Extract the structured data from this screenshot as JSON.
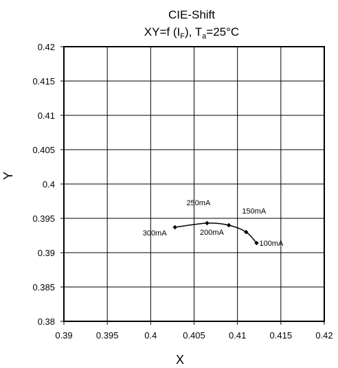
{
  "chart_data": {
    "type": "line",
    "title": "CIE-Shift",
    "subtitle": {
      "prefix": "XY=f (I",
      "sub1": "F",
      "middle": "), T",
      "sub2": "a",
      "suffix": "=25°C"
    },
    "xlabel": "X",
    "ylabel": "Y",
    "xlim": [
      0.39,
      0.42
    ],
    "ylim": [
      0.38,
      0.42
    ],
    "x_ticks": [
      "0.39",
      "0.395",
      "0.4",
      "0.405",
      "0.41",
      "0.415",
      "0.42"
    ],
    "y_ticks": [
      "0.38",
      "0.385",
      "0.39",
      "0.395",
      "0.4",
      "0.405",
      "0.41",
      "0.415",
      "0.42"
    ],
    "grid": true,
    "series": [
      {
        "points": [
          {
            "x": 0.4122,
            "y": 0.3914,
            "label": "100mA"
          },
          {
            "x": 0.411,
            "y": 0.393,
            "label": "150mA"
          },
          {
            "x": 0.409,
            "y": 0.394,
            "label": "200mA"
          },
          {
            "x": 0.4065,
            "y": 0.3943,
            "label": "250mA"
          },
          {
            "x": 0.4028,
            "y": 0.3937,
            "label": "300mA"
          }
        ]
      }
    ],
    "colors": {
      "line": "#000000",
      "grid": "#000000",
      "background": "#ffffff"
    }
  }
}
